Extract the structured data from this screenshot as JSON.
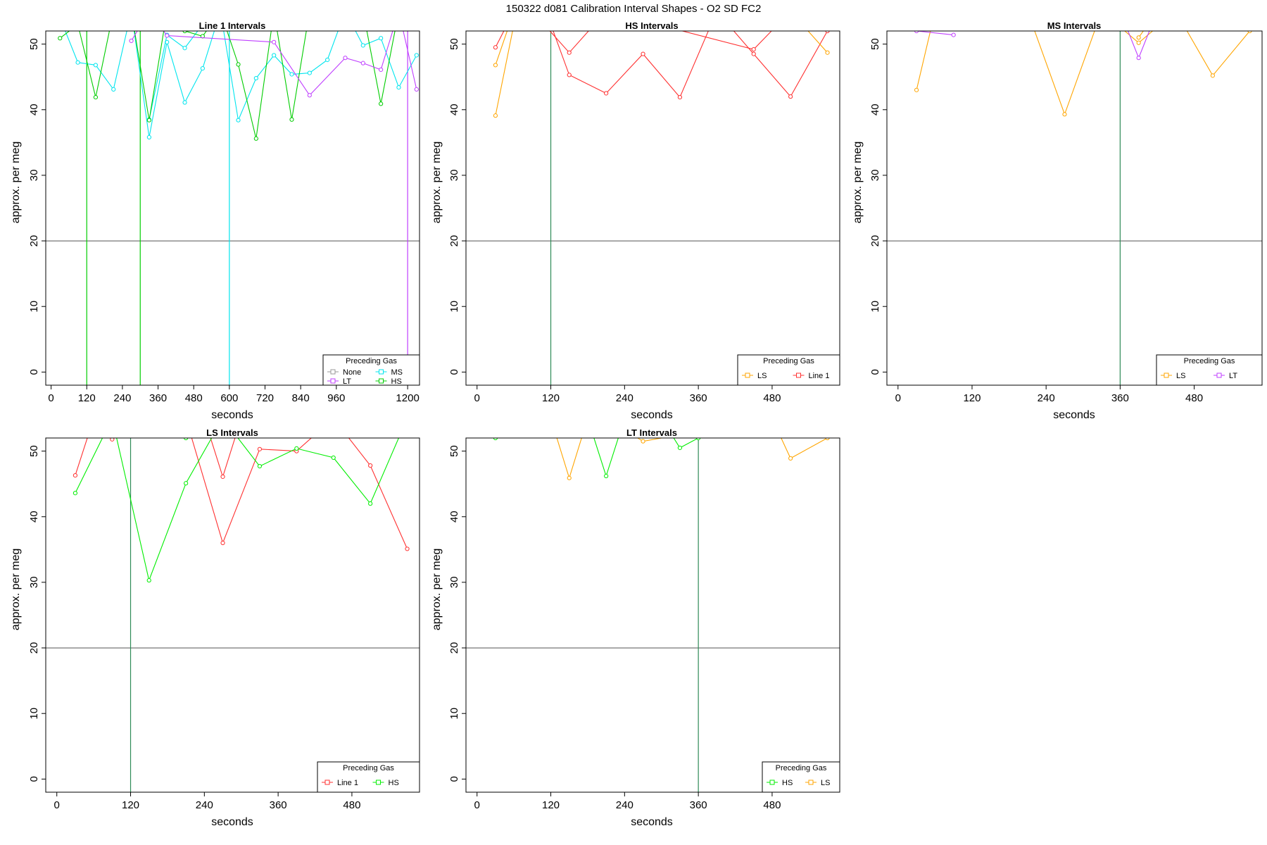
{
  "figure": {
    "title": "150322   d081   Calibration Interval Shapes - O2 SD FC2"
  },
  "chart_data": [
    {
      "type": "line",
      "title": "Line 1 Intervals",
      "xlabel": "seconds",
      "ylabel": "approx. per meg",
      "xlim": [
        -18,
        1240
      ],
      "ylim": [
        -2,
        52
      ],
      "xticks": [
        0,
        120,
        240,
        360,
        480,
        600,
        720,
        840,
        960,
        1200
      ],
      "yticks": [
        0,
        10,
        20,
        30,
        40,
        50
      ],
      "hlines": [
        20
      ],
      "vlines": [
        {
          "x": 120,
          "color": "#00cd00"
        },
        {
          "x": 300,
          "color": "#00cd00"
        },
        {
          "x": 600,
          "color": "#00e5ee"
        },
        {
          "x": 1200,
          "color": "#bf3eff"
        }
      ],
      "legend": {
        "title": "Preceding Gas",
        "position": "bottom-right",
        "ncol": 2,
        "entries": [
          {
            "name": "None",
            "color": "#999999"
          },
          {
            "name": "MS",
            "color": "#00e5ee"
          },
          {
            "name": "LT",
            "color": "#bf3eff"
          },
          {
            "name": "HS",
            "color": "#00cd00"
          }
        ]
      },
      "series": [
        {
          "name": "MS",
          "color": "#00e5ee",
          "x": [
            30,
            90,
            150,
            210,
            270,
            330,
            390,
            450,
            510,
            570,
            630,
            690,
            750,
            810,
            870,
            930,
            990,
            1050,
            1110,
            1170,
            1230
          ],
          "y": [
            54,
            47.2,
            46.8,
            43.1,
            55,
            35.8,
            50.3,
            41.1,
            46.3,
            55,
            38.4,
            44.8,
            48.3,
            45.4,
            45.6,
            47.6,
            55,
            49.8,
            50.9,
            43.4,
            48.3
          ]
        },
        {
          "name": "MS",
          "color": "#00e5ee",
          "x": [
            330,
            390,
            450,
            510
          ],
          "y": [
            38.5,
            51.4,
            49.4,
            53
          ]
        },
        {
          "name": "HS",
          "color": "#00cd00",
          "x": [
            30,
            90,
            150,
            210,
            270,
            330,
            390,
            450,
            510,
            570,
            630,
            690,
            750,
            810,
            870,
            930,
            990,
            1050,
            1110,
            1170,
            1230
          ],
          "y": [
            50.9,
            53,
            41.9,
            55,
            55,
            38.4,
            55,
            52,
            51.2,
            55,
            46.9,
            35.6,
            55,
            38.5,
            55,
            55,
            55,
            55,
            40.9,
            55,
            55
          ]
        },
        {
          "name": "LT",
          "color": "#bf3eff",
          "x": [
            270,
            330,
            390,
            750,
            870,
            990,
            1050,
            1110,
            1170,
            1230
          ],
          "y": [
            50.5,
            55,
            51.3,
            50.3,
            42.2,
            47.9,
            47.1,
            46.1,
            55,
            43.1
          ]
        }
      ]
    },
    {
      "type": "line",
      "title": "HS Intervals",
      "xlabel": "seconds",
      "ylabel": "approx. per meg",
      "xlim": [
        -18,
        590
      ],
      "ylim": [
        -2,
        52
      ],
      "xticks": [
        0,
        120,
        240,
        360,
        480
      ],
      "yticks": [
        0,
        10,
        20,
        30,
        40,
        50
      ],
      "hlines": [
        20
      ],
      "vlines": [
        {
          "x": 120,
          "color": "#2e8b57"
        }
      ],
      "legend": {
        "title": "Preceding Gas",
        "position": "bottom-right",
        "ncol": 2,
        "entries": [
          {
            "name": "LS",
            "color": "#ffa500"
          },
          {
            "name": "Line 1",
            "color": "#ff3030"
          }
        ]
      },
      "series": [
        {
          "name": "Line 1",
          "color": "#ff3030",
          "x": [
            30,
            60,
            90,
            120,
            150,
            210,
            270,
            330,
            390,
            450,
            510,
            570
          ],
          "y": [
            49.5,
            55,
            55,
            53,
            45.3,
            42.5,
            48.5,
            41.9,
            55,
            48.5,
            42,
            52
          ]
        },
        {
          "name": "Line 1",
          "color": "#ff3030",
          "x": [
            90,
            150,
            210,
            450,
            510
          ],
          "y": [
            55,
            48.7,
            55,
            49.2,
            55
          ]
        },
        {
          "name": "LS",
          "color": "#ffa500",
          "x": [
            30,
            60,
            90,
            510,
            570
          ],
          "y": [
            39.1,
            53,
            55,
            55,
            48.7
          ]
        },
        {
          "name": "LS",
          "color": "#ffa500",
          "x": [
            30,
            60
          ],
          "y": [
            46.8,
            55
          ]
        }
      ]
    },
    {
      "type": "line",
      "title": "MS Intervals",
      "xlabel": "seconds",
      "ylabel": "approx. per meg",
      "xlim": [
        -18,
        590
      ],
      "ylim": [
        -2,
        52
      ],
      "xticks": [
        0,
        120,
        240,
        360,
        480
      ],
      "yticks": [
        0,
        10,
        20,
        30,
        40,
        50
      ],
      "hlines": [
        20
      ],
      "vlines": [
        {
          "x": 360,
          "color": "#2e8b57"
        }
      ],
      "legend": {
        "title": "Preceding Gas",
        "position": "bottom-right",
        "ncol": 2,
        "entries": [
          {
            "name": "LS",
            "color": "#ffa500"
          },
          {
            "name": "LT",
            "color": "#bf3eff"
          }
        ]
      },
      "series": [
        {
          "name": "LS",
          "color": "#ffa500",
          "x": [
            30,
            60,
            90,
            210,
            270,
            330,
            390,
            450,
            510,
            570
          ],
          "y": [
            43,
            55,
            55,
            55,
            39.3,
            55,
            50.2,
            55,
            45.2,
            52
          ]
        },
        {
          "name": "LS",
          "color": "#ffa500",
          "x": [
            390,
            420
          ],
          "y": [
            51,
            55
          ]
        },
        {
          "name": "LT",
          "color": "#bf3eff",
          "x": [
            30,
            90
          ],
          "y": [
            52,
            51.4
          ]
        },
        {
          "name": "LT",
          "color": "#bf3eff",
          "x": [
            360,
            390,
            420
          ],
          "y": [
            55,
            47.9,
            55
          ]
        }
      ]
    },
    {
      "type": "line",
      "title": "LS Intervals",
      "xlabel": "seconds",
      "ylabel": "approx. per meg",
      "xlim": [
        -18,
        590
      ],
      "ylim": [
        -2,
        52
      ],
      "xticks": [
        0,
        120,
        240,
        360,
        480
      ],
      "yticks": [
        0,
        10,
        20,
        30,
        40,
        50
      ],
      "hlines": [
        20
      ],
      "vlines": [
        {
          "x": 120,
          "color": "#2e8b57"
        }
      ],
      "legend": {
        "title": "Preceding Gas",
        "position": "bottom-right",
        "ncol": 2,
        "entries": [
          {
            "name": "Line 1",
            "color": "#ff3030"
          },
          {
            "name": "HS",
            "color": "#00ee00"
          }
        ]
      },
      "series": [
        {
          "name": "Line 1",
          "color": "#ff3030",
          "x": [
            30,
            60,
            90,
            120,
            150,
            210,
            270,
            330,
            390,
            450,
            510,
            570
          ],
          "y": [
            46.3,
            55,
            51.8,
            55,
            55,
            55,
            36,
            50.3,
            50,
            55,
            47.8,
            35.1
          ]
        },
        {
          "name": "Line 1",
          "color": "#ff3030",
          "x": [
            240,
            270,
            300
          ],
          "y": [
            55,
            46.1,
            55
          ]
        },
        {
          "name": "HS",
          "color": "#00ee00",
          "x": [
            30,
            90,
            150,
            210,
            270,
            330,
            390,
            450,
            510,
            570
          ],
          "y": [
            43.6,
            55,
            30.3,
            45.1,
            55,
            47.7,
            50.4,
            49,
            42,
            55
          ]
        },
        {
          "name": "HS",
          "color": "#00ee00",
          "x": [
            180,
            210,
            240
          ],
          "y": [
            55,
            52,
            55
          ]
        }
      ]
    },
    {
      "type": "line",
      "title": "LT Intervals",
      "xlabel": "seconds",
      "ylabel": "approx. per meg",
      "xlim": [
        -18,
        590
      ],
      "ylim": [
        -2,
        52
      ],
      "xticks": [
        0,
        120,
        240,
        360,
        480
      ],
      "yticks": [
        0,
        10,
        20,
        30,
        40,
        50
      ],
      "hlines": [
        20
      ],
      "vlines": [
        {
          "x": 360,
          "color": "#2e8b57"
        }
      ],
      "legend": {
        "title": "Preceding Gas",
        "position": "bottom-right",
        "ncol": 2,
        "entries": [
          {
            "name": "HS",
            "color": "#00ee00"
          },
          {
            "name": "LS",
            "color": "#ffa500"
          }
        ]
      },
      "series": [
        {
          "name": "HS",
          "color": "#00ee00",
          "x": [
            30,
            90,
            150,
            180,
            210,
            240,
            300,
            330,
            360
          ],
          "y": [
            52,
            55,
            55,
            55,
            46.2,
            55,
            55,
            50.5,
            52
          ]
        },
        {
          "name": "LS",
          "color": "#ffa500",
          "x": [
            120,
            150,
            180,
            210,
            270,
            480,
            510,
            570
          ],
          "y": [
            55,
            45.9,
            55,
            55,
            51.5,
            55,
            48.9,
            52
          ]
        }
      ]
    }
  ]
}
